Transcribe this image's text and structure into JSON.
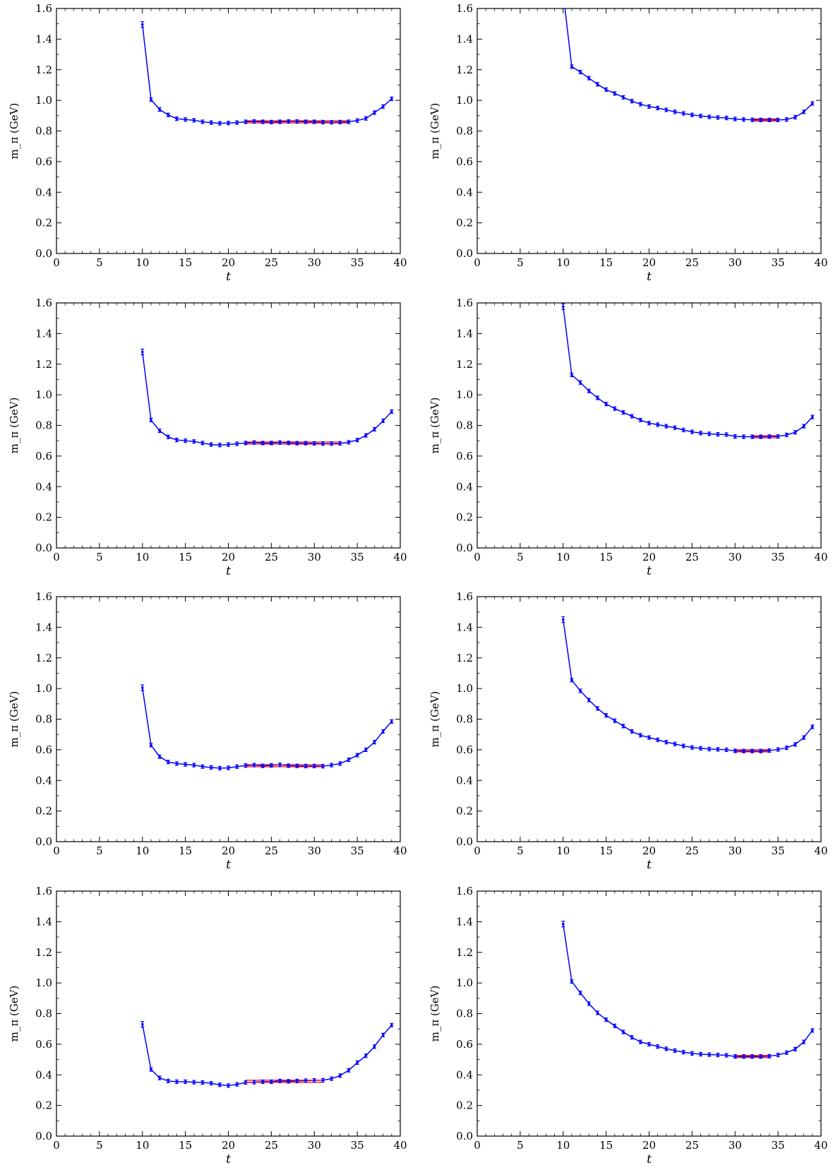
{
  "figure": {
    "colors": {
      "series": "#0000ff",
      "fit": "#ff0000",
      "axis": "#000000"
    }
  },
  "chart_data": [
    {
      "type": "line",
      "xlabel": "t",
      "ylabel": "m_π (GeV)",
      "xlim": [
        0,
        40
      ],
      "ylim": [
        0,
        1.6
      ],
      "xticks": [
        "0",
        "5",
        "10",
        "15",
        "20",
        "25",
        "30",
        "35",
        "40"
      ],
      "yticks": [
        "0.0",
        "0.2",
        "0.4",
        "0.6",
        "0.8",
        "1.0",
        "1.2",
        "1.4",
        "1.6"
      ],
      "x": [
        10,
        11,
        12,
        13,
        14,
        15,
        16,
        17,
        18,
        19,
        20,
        21,
        22,
        23,
        24,
        25,
        26,
        27,
        28,
        29,
        30,
        31,
        32,
        33,
        34,
        35,
        36,
        37,
        38,
        39
      ],
      "values": [
        1.495,
        1.005,
        0.94,
        0.905,
        0.88,
        0.875,
        0.87,
        0.86,
        0.855,
        0.85,
        0.852,
        0.855,
        0.86,
        0.862,
        0.86,
        0.858,
        0.86,
        0.862,
        0.862,
        0.86,
        0.86,
        0.858,
        0.857,
        0.858,
        0.86,
        0.868,
        0.882,
        0.92,
        0.96,
        1.01
      ],
      "fit": {
        "x": [
          22,
          34
        ],
        "value": 0.86
      }
    },
    {
      "type": "line",
      "xlabel": "t",
      "ylabel": "m_π (GeV)",
      "xlim": [
        0,
        40
      ],
      "ylim": [
        0,
        1.6
      ],
      "xticks": [
        "0",
        "5",
        "10",
        "15",
        "20",
        "25",
        "30",
        "35",
        "40"
      ],
      "yticks": [
        "0.0",
        "0.2",
        "0.4",
        "0.6",
        "0.8",
        "1.0",
        "1.2",
        "1.4",
        "1.6"
      ],
      "x": [
        10,
        11,
        12,
        13,
        14,
        15,
        16,
        17,
        18,
        19,
        20,
        21,
        22,
        23,
        24,
        25,
        26,
        27,
        28,
        29,
        30,
        31,
        32,
        33,
        34,
        35,
        36,
        37,
        38,
        39
      ],
      "values": [
        1.7,
        1.22,
        1.185,
        1.145,
        1.105,
        1.07,
        1.045,
        1.02,
        0.995,
        0.975,
        0.96,
        0.95,
        0.938,
        0.925,
        0.915,
        0.905,
        0.898,
        0.892,
        0.888,
        0.885,
        0.878,
        0.875,
        0.873,
        0.872,
        0.872,
        0.872,
        0.875,
        0.89,
        0.925,
        0.98
      ],
      "fit": {
        "x": [
          32,
          35
        ],
        "value": 0.872
      }
    },
    {
      "type": "line",
      "xlabel": "t",
      "ylabel": "m_π (GeV)",
      "xlim": [
        0,
        40
      ],
      "ylim": [
        0,
        1.6
      ],
      "xticks": [
        "0",
        "5",
        "10",
        "15",
        "20",
        "25",
        "30",
        "35",
        "40"
      ],
      "yticks": [
        "0.0",
        "0.2",
        "0.4",
        "0.6",
        "0.8",
        "1.0",
        "1.2",
        "1.4",
        "1.6"
      ],
      "x": [
        10,
        11,
        12,
        13,
        14,
        15,
        16,
        17,
        18,
        19,
        20,
        21,
        22,
        23,
        24,
        25,
        26,
        27,
        28,
        29,
        30,
        31,
        32,
        33,
        34,
        35,
        36,
        37,
        38,
        39
      ],
      "values": [
        1.28,
        0.835,
        0.765,
        0.725,
        0.705,
        0.7,
        0.695,
        0.685,
        0.675,
        0.672,
        0.675,
        0.68,
        0.685,
        0.688,
        0.685,
        0.685,
        0.688,
        0.686,
        0.684,
        0.684,
        0.683,
        0.682,
        0.682,
        0.683,
        0.69,
        0.705,
        0.735,
        0.775,
        0.83,
        0.89
      ],
      "fit": {
        "x": [
          22,
          33
        ],
        "value": 0.685
      }
    },
    {
      "type": "line",
      "xlabel": "t",
      "ylabel": "m_π (GeV)",
      "xlim": [
        0,
        40
      ],
      "ylim": [
        0,
        1.6
      ],
      "xticks": [
        "0",
        "5",
        "10",
        "15",
        "20",
        "25",
        "30",
        "35",
        "40"
      ],
      "yticks": [
        "0.0",
        "0.2",
        "0.4",
        "0.6",
        "0.8",
        "1.0",
        "1.2",
        "1.4",
        "1.6"
      ],
      "x": [
        10,
        11,
        12,
        13,
        14,
        15,
        16,
        17,
        18,
        19,
        20,
        21,
        22,
        23,
        24,
        25,
        26,
        27,
        28,
        29,
        30,
        31,
        32,
        33,
        34,
        35,
        36,
        37,
        38,
        39
      ],
      "values": [
        1.575,
        1.13,
        1.08,
        1.025,
        0.98,
        0.94,
        0.91,
        0.885,
        0.86,
        0.835,
        0.815,
        0.805,
        0.795,
        0.785,
        0.77,
        0.758,
        0.75,
        0.745,
        0.742,
        0.74,
        0.728,
        0.726,
        0.726,
        0.726,
        0.727,
        0.728,
        0.738,
        0.755,
        0.795,
        0.855
      ],
      "fit": {
        "x": [
          32,
          35
        ],
        "value": 0.726
      }
    },
    {
      "type": "line",
      "xlabel": "t",
      "ylabel": "m_π (GeV)",
      "xlim": [
        0,
        40
      ],
      "ylim": [
        0,
        1.6
      ],
      "xticks": [
        "0",
        "5",
        "10",
        "15",
        "20",
        "25",
        "30",
        "35",
        "40"
      ],
      "yticks": [
        "0.0",
        "0.2",
        "0.4",
        "0.6",
        "0.8",
        "1.0",
        "1.2",
        "1.4",
        "1.6"
      ],
      "x": [
        10,
        11,
        12,
        13,
        14,
        15,
        16,
        17,
        18,
        19,
        20,
        21,
        22,
        23,
        24,
        25,
        26,
        27,
        28,
        29,
        30,
        31,
        32,
        33,
        34,
        35,
        36,
        37,
        38,
        39
      ],
      "values": [
        1.005,
        0.63,
        0.555,
        0.52,
        0.51,
        0.505,
        0.5,
        0.49,
        0.485,
        0.48,
        0.482,
        0.49,
        0.497,
        0.5,
        0.495,
        0.498,
        0.502,
        0.496,
        0.495,
        0.494,
        0.494,
        0.493,
        0.5,
        0.51,
        0.535,
        0.565,
        0.6,
        0.65,
        0.72,
        0.785
      ],
      "fit": {
        "x": [
          22,
          31
        ],
        "value": 0.496
      }
    },
    {
      "type": "line",
      "xlabel": "t",
      "ylabel": "m_π (GeV)",
      "xlim": [
        0,
        40
      ],
      "ylim": [
        0,
        1.6
      ],
      "xticks": [
        "0",
        "5",
        "10",
        "15",
        "20",
        "25",
        "30",
        "35",
        "40"
      ],
      "yticks": [
        "0.0",
        "0.2",
        "0.4",
        "0.6",
        "0.8",
        "1.0",
        "1.2",
        "1.4",
        "1.6"
      ],
      "x": [
        10,
        11,
        12,
        13,
        14,
        15,
        16,
        17,
        18,
        19,
        20,
        21,
        22,
        23,
        24,
        25,
        26,
        27,
        28,
        29,
        30,
        31,
        32,
        33,
        34,
        35,
        36,
        37,
        38,
        39
      ],
      "values": [
        1.45,
        1.055,
        0.985,
        0.925,
        0.87,
        0.825,
        0.79,
        0.755,
        0.72,
        0.695,
        0.68,
        0.665,
        0.65,
        0.638,
        0.625,
        0.615,
        0.61,
        0.605,
        0.603,
        0.6,
        0.593,
        0.592,
        0.592,
        0.592,
        0.595,
        0.602,
        0.613,
        0.635,
        0.68,
        0.75
      ],
      "fit": {
        "x": [
          30,
          34
        ],
        "value": 0.593
      }
    },
    {
      "type": "line",
      "xlabel": "t",
      "ylabel": "m_π (GeV)",
      "xlim": [
        0,
        40
      ],
      "ylim": [
        0,
        1.6
      ],
      "xticks": [
        "0",
        "5",
        "10",
        "15",
        "20",
        "25",
        "30",
        "35",
        "40"
      ],
      "yticks": [
        "0.0",
        "0.2",
        "0.4",
        "0.6",
        "0.8",
        "1.0",
        "1.2",
        "1.4",
        "1.6"
      ],
      "x": [
        10,
        11,
        12,
        13,
        14,
        15,
        16,
        17,
        18,
        19,
        20,
        21,
        22,
        23,
        24,
        25,
        26,
        27,
        28,
        29,
        30,
        31,
        32,
        33,
        34,
        35,
        36,
        37,
        38,
        39
      ],
      "values": [
        0.73,
        0.435,
        0.38,
        0.36,
        0.355,
        0.355,
        0.352,
        0.35,
        0.345,
        0.335,
        0.33,
        0.338,
        0.35,
        0.352,
        0.355,
        0.355,
        0.36,
        0.358,
        0.36,
        0.362,
        0.364,
        0.365,
        0.375,
        0.395,
        0.43,
        0.48,
        0.525,
        0.585,
        0.66,
        0.725
      ],
      "fit": {
        "x": [
          22,
          31
        ],
        "value": 0.358
      }
    },
    {
      "type": "line",
      "xlabel": "t",
      "ylabel": "m_π (GeV)",
      "xlim": [
        0,
        40
      ],
      "ylim": [
        0,
        1.6
      ],
      "xticks": [
        "0",
        "5",
        "10",
        "15",
        "20",
        "25",
        "30",
        "35",
        "40"
      ],
      "yticks": [
        "0.0",
        "0.2",
        "0.4",
        "0.6",
        "0.8",
        "1.0",
        "1.2",
        "1.4",
        "1.6"
      ],
      "x": [
        10,
        11,
        12,
        13,
        14,
        15,
        16,
        17,
        18,
        19,
        20,
        21,
        22,
        23,
        24,
        25,
        26,
        27,
        28,
        29,
        30,
        31,
        32,
        33,
        34,
        35,
        36,
        37,
        38,
        39
      ],
      "values": [
        1.385,
        1.01,
        0.935,
        0.865,
        0.805,
        0.76,
        0.72,
        0.68,
        0.645,
        0.615,
        0.6,
        0.585,
        0.57,
        0.558,
        0.548,
        0.54,
        0.535,
        0.532,
        0.53,
        0.528,
        0.52,
        0.52,
        0.52,
        0.52,
        0.522,
        0.53,
        0.545,
        0.568,
        0.615,
        0.69
      ],
      "fit": {
        "x": [
          30,
          34
        ],
        "value": 0.52
      }
    }
  ]
}
